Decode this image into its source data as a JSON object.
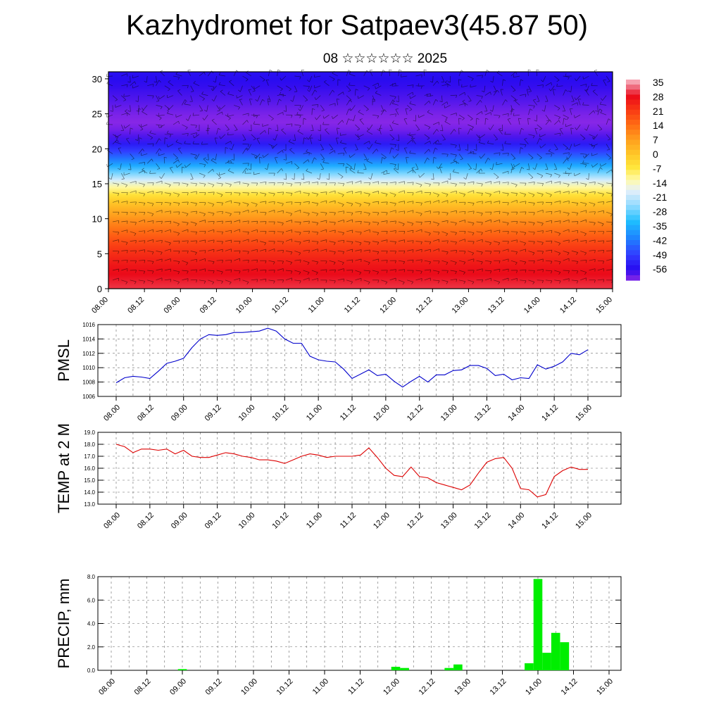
{
  "title": "Kazhydromet for Satpaev3(45.87 50)",
  "subtitle": "08 ☆☆☆☆☆☆ 2025",
  "colors": {
    "pmsl_line": "#0000cc",
    "temp_line": "#dd0000",
    "precip_bar": "#00ee00"
  },
  "time_ticks": [
    "08.00",
    "08.12",
    "09.00",
    "09.12",
    "10.00",
    "10.12",
    "11.00",
    "11.12",
    "12.00",
    "12.12",
    "13.00",
    "13.12",
    "14.00",
    "14.12",
    "15.00"
  ],
  "chart_data": [
    {
      "type": "heatmap",
      "title": "",
      "xlabel": "",
      "ylabel": "",
      "ylim": [
        0,
        31
      ],
      "y_ticks": [
        "0",
        "5",
        "10",
        "15",
        "20",
        "25",
        "30"
      ],
      "x_ticks": [
        "08.00",
        "08.12",
        "09.00",
        "09.12",
        "10.00",
        "10.12",
        "11.00",
        "11.12",
        "12.00",
        "12.12",
        "13.00",
        "13.12",
        "14.00",
        "14.12",
        "15.00"
      ],
      "colorbar_labels": [
        "35",
        "28",
        "21",
        "14",
        "7",
        "0",
        "-7",
        "-14",
        "-21",
        "-28",
        "-35",
        "-42",
        "-49",
        "-56"
      ],
      "overlay": "wind barbs",
      "levels": [
        0,
        3,
        6,
        9,
        12,
        14,
        16,
        18,
        20,
        22,
        24,
        27,
        31
      ],
      "temperature": [
        30,
        27,
        21,
        12,
        2,
        -8,
        -22,
        -38,
        -50,
        -58,
        -60,
        -57,
        -54
      ]
    },
    {
      "type": "line",
      "ylabel": "PMSL",
      "ylim": [
        1006,
        1016
      ],
      "y_ticks": [
        "1006",
        "1008",
        "1010",
        "1012",
        "1014",
        "1016"
      ],
      "x_ticks": [
        "08.00",
        "08.12",
        "09.00",
        "09.12",
        "10.00",
        "10.12",
        "11.00",
        "11.12",
        "12.00",
        "12.12",
        "13.00",
        "13.12",
        "14.00",
        "14.12",
        "15.00"
      ],
      "x": [
        0,
        3,
        6,
        9,
        12,
        15,
        18,
        21,
        24,
        27,
        30,
        33,
        36,
        39,
        42,
        45,
        48,
        51,
        54,
        57,
        60,
        63,
        66,
        69,
        72,
        75,
        78,
        81,
        84,
        87,
        90,
        93,
        96,
        99,
        102,
        105,
        108,
        111,
        114,
        117,
        120,
        123,
        126,
        129,
        132,
        135,
        138,
        141,
        144,
        147,
        150,
        153,
        156,
        159,
        162,
        165,
        168
      ],
      "series": [
        {
          "values": [
            1007.9,
            1008.6,
            1008.8,
            1008.7,
            1008.5,
            1009.5,
            1010.6,
            1010.9,
            1011.3,
            1012.8,
            1014.0,
            1014.6,
            1014.5,
            1014.6,
            1014.9,
            1014.9,
            1015.0,
            1015.1,
            1015.5,
            1015.1,
            1014.0,
            1013.4,
            1013.4,
            1011.6,
            1011.1,
            1010.9,
            1010.8,
            1009.8,
            1008.5,
            1009.1,
            1009.7,
            1008.9,
            1009.1,
            1008.1,
            1007.3,
            1008.1,
            1008.8,
            1008.0,
            1009.0,
            1009.0,
            1009.6,
            1009.7,
            1010.3,
            1010.3,
            1009.9,
            1008.9,
            1009.1,
            1008.3,
            1008.6,
            1008.5,
            1010.4,
            1009.8,
            1010.2,
            1010.8,
            1012.0,
            1011.8,
            1012.5
          ]
        }
      ]
    },
    {
      "type": "line",
      "ylabel": "TEMP at 2 M",
      "ylim": [
        13.0,
        19.0
      ],
      "y_ticks": [
        "13.0",
        "14.0",
        "15.0",
        "16.0",
        "17.0",
        "18.0",
        "19.0"
      ],
      "x_ticks": [
        "08.00",
        "08.12",
        "09.00",
        "09.12",
        "10.00",
        "10.12",
        "11.00",
        "11.12",
        "12.00",
        "12.12",
        "13.00",
        "13.12",
        "14.00",
        "14.12",
        "15.00"
      ],
      "x": [
        0,
        3,
        6,
        9,
        12,
        15,
        18,
        21,
        24,
        27,
        30,
        33,
        36,
        39,
        42,
        45,
        48,
        51,
        54,
        57,
        60,
        63,
        66,
        69,
        72,
        75,
        78,
        81,
        84,
        87,
        90,
        93,
        96,
        99,
        102,
        105,
        108,
        111,
        114,
        117,
        120,
        123,
        126,
        129,
        132,
        135,
        138,
        141,
        144,
        147,
        150,
        153,
        156,
        159,
        162,
        165,
        168
      ],
      "series": [
        {
          "values": [
            18.0,
            17.8,
            17.3,
            17.6,
            17.6,
            17.5,
            17.6,
            17.2,
            17.5,
            17.0,
            16.9,
            16.9,
            17.1,
            17.3,
            17.2,
            17.0,
            16.9,
            16.7,
            16.7,
            16.6,
            16.4,
            16.7,
            17.0,
            17.2,
            17.1,
            16.9,
            17.0,
            17.0,
            17.0,
            17.1,
            17.7,
            16.9,
            16.0,
            15.4,
            15.3,
            16.1,
            15.3,
            15.2,
            14.8,
            14.6,
            14.4,
            14.2,
            14.6,
            15.6,
            16.5,
            16.8,
            16.9,
            16.0,
            14.3,
            14.2,
            13.6,
            13.8,
            15.3,
            15.8,
            16.1,
            15.9,
            15.9
          ]
        }
      ]
    },
    {
      "type": "bar",
      "ylabel": "PRECIP, mm",
      "ylim": [
        0.0,
        8.0
      ],
      "y_ticks": [
        "0.0",
        "2.0",
        "4.0",
        "6.0",
        "8.0"
      ],
      "x_ticks": [
        "08.00",
        "08.12",
        "09.00",
        "09.12",
        "10.00",
        "10.12",
        "11.00",
        "11.12",
        "12.00",
        "12.12",
        "13.00",
        "13.12",
        "14.00",
        "14.12",
        "15.00"
      ],
      "x": [
        24,
        96,
        99,
        114,
        117,
        141,
        144,
        147,
        150,
        153
      ],
      "values": [
        0.1,
        0.3,
        0.2,
        0.2,
        0.5,
        0.6,
        7.8,
        1.5,
        3.2,
        2.4
      ]
    }
  ]
}
